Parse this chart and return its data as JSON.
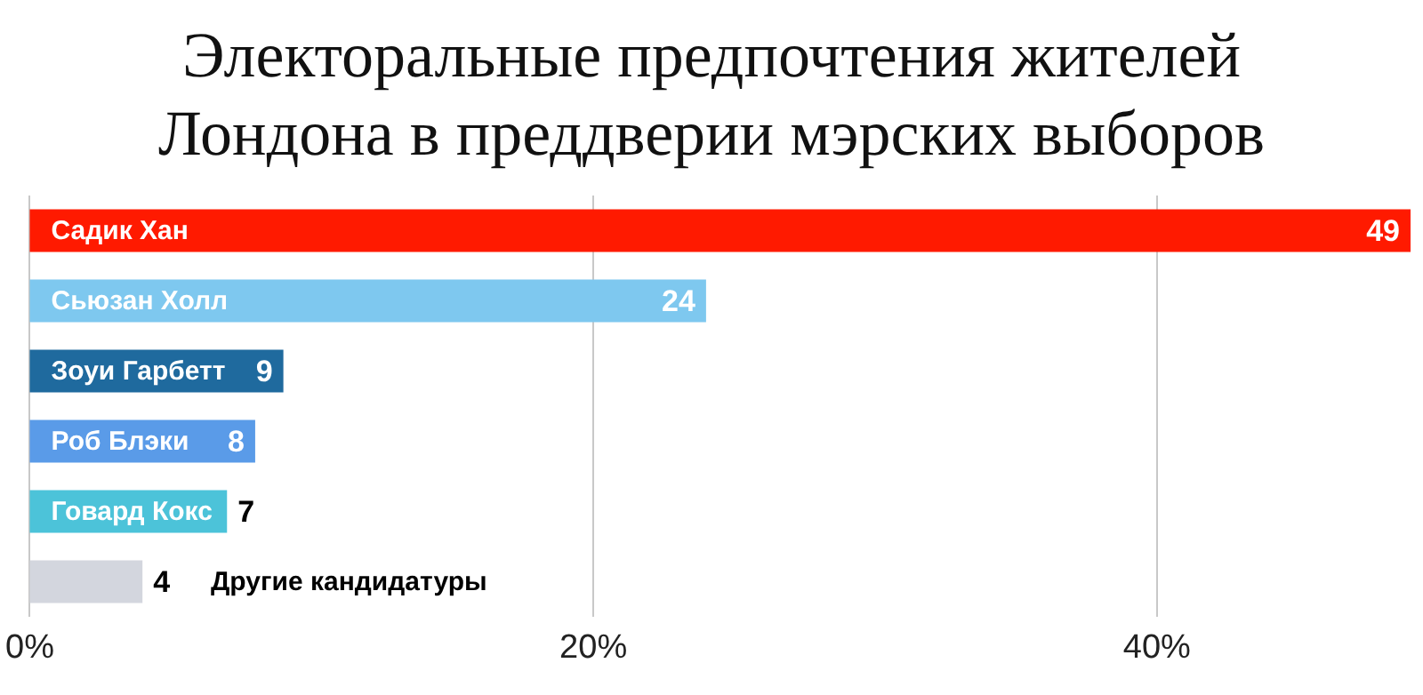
{
  "chart_data": {
    "type": "bar",
    "orientation": "horizontal",
    "title": "Электоральные предпочтения жителей Лондона в преддверии мэрских выборов",
    "categories": [
      "Садик Хан",
      "Сьюзан Холл",
      "Зоуи Гарбетт",
      "Роб Блэки",
      "Говард Кокс",
      "Другие кандидатуры"
    ],
    "values": [
      49,
      24,
      9,
      8,
      7,
      4
    ],
    "colors": [
      "#ff1a00",
      "#7ec8ef",
      "#1f6a9e",
      "#5a9be8",
      "#4cc3d9",
      "#d3d6de"
    ],
    "xlim": [
      0,
      49
    ],
    "xticks": [
      {
        "value": 0,
        "label": "0%"
      },
      {
        "value": 20,
        "label": "20%"
      },
      {
        "value": 40,
        "label": "40%"
      }
    ],
    "grid": "x",
    "data_labels": true
  }
}
